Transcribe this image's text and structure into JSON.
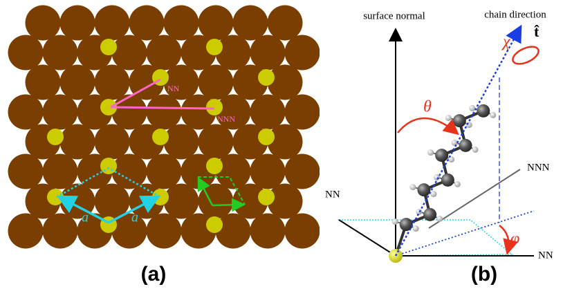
{
  "panel_a": {
    "nn_label": "NN",
    "nnn_label": "NNN",
    "lattice_vector_labels": [
      "a",
      "a"
    ],
    "caption": "(a)"
  },
  "panel_b": {
    "surface_normal_label": "surface normal",
    "chain_direction_label": "chain direction",
    "chain_vector_symbol": "t̂",
    "chi_symbol": "χ",
    "theta_symbol": "θ",
    "phi_symbol": "φ",
    "nnn_label": "NNN",
    "nn_left_label": "NN",
    "nn_right_label": "NN",
    "caption": "(b)"
  }
}
